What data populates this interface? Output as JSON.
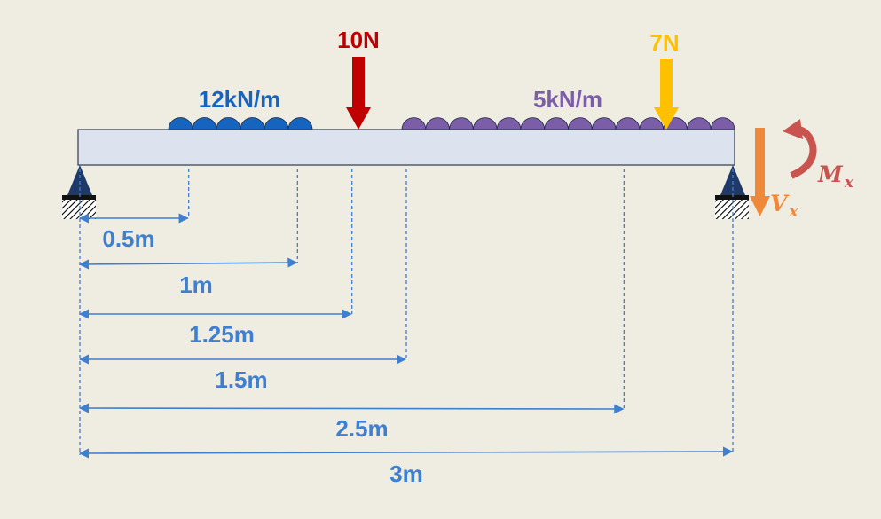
{
  "loads": {
    "udl_left": {
      "label": "12kN/m",
      "color": "#1565c0"
    },
    "point_10": {
      "label": "10N",
      "color": "#c00000"
    },
    "udl_right": {
      "label": "5kN/m",
      "color": "#7b5ea7"
    },
    "point_7": {
      "label": "7N",
      "color": "#ffc000"
    }
  },
  "reactions": {
    "shear": {
      "symbol": "V",
      "subscript": "x",
      "color": "#f0883a"
    },
    "moment": {
      "symbol": "M",
      "subscript": "x",
      "color": "#c9544f"
    }
  },
  "dimensions": [
    {
      "label": "0.5m",
      "distance": 0.5
    },
    {
      "label": "1m",
      "distance": 1
    },
    {
      "label": "1.25m",
      "distance": 1.25
    },
    {
      "label": "1.5m",
      "distance": 1.5
    },
    {
      "label": "2.5m",
      "distance": 2.5
    },
    {
      "label": "3m",
      "distance": 3
    }
  ],
  "colors": {
    "beam_fill": "#dce3ef",
    "beam_stroke": "#2f3a4a",
    "dimension": "#3f7fd0",
    "support": "#1f3a68"
  }
}
